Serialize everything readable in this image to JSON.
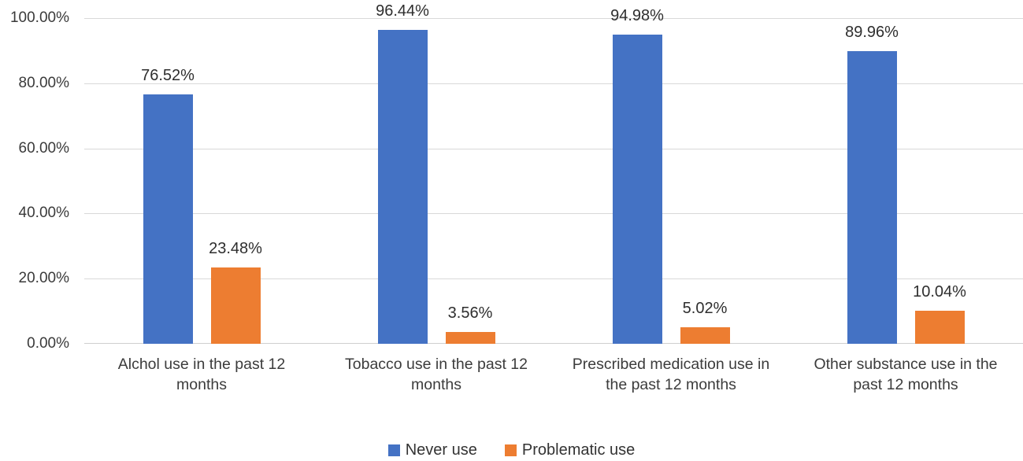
{
  "chart_data": {
    "type": "bar",
    "title": "",
    "xlabel": "",
    "ylabel": "",
    "categories": [
      "Alchol use in the past 12 months",
      "Tobacco use in the past 12 months",
      "Prescribed medication use in the past 12 months",
      "Other substance use in the past 12 months"
    ],
    "category_lines": [
      [
        "Alchol use in the past 12",
        "months"
      ],
      [
        "Tobacco use in the past 12",
        "months"
      ],
      [
        "Prescribed medication use in",
        "the past 12 months"
      ],
      [
        "Other substance use in the",
        "past 12 months"
      ]
    ],
    "series": [
      {
        "name": "Never use",
        "color": "#4472C4",
        "values": [
          76.52,
          96.44,
          94.98,
          89.96
        ],
        "data_labels": [
          "76.52%",
          "96.44%",
          "94.98%",
          "89.96%"
        ]
      },
      {
        "name": "Problematic use",
        "color": "#ED7D31",
        "values": [
          23.48,
          3.56,
          5.02,
          10.04
        ],
        "data_labels": [
          "23.48%",
          "3.56%",
          "5.02%",
          "10.04%"
        ]
      }
    ],
    "ylim": [
      0,
      100
    ],
    "yticks": [
      0,
      20,
      40,
      60,
      80,
      100
    ],
    "ytick_labels": [
      "0.00%",
      "20.00%",
      "40.00%",
      "60.00%",
      "80.00%",
      "100.00%"
    ],
    "grid": true,
    "legend_position": "bottom"
  },
  "colors": {
    "never_use": "#4472C4",
    "problematic_use": "#ED7D31",
    "gridline": "#D9D9D9",
    "text": "#3A3A3A",
    "background": "#FFFFFF"
  }
}
